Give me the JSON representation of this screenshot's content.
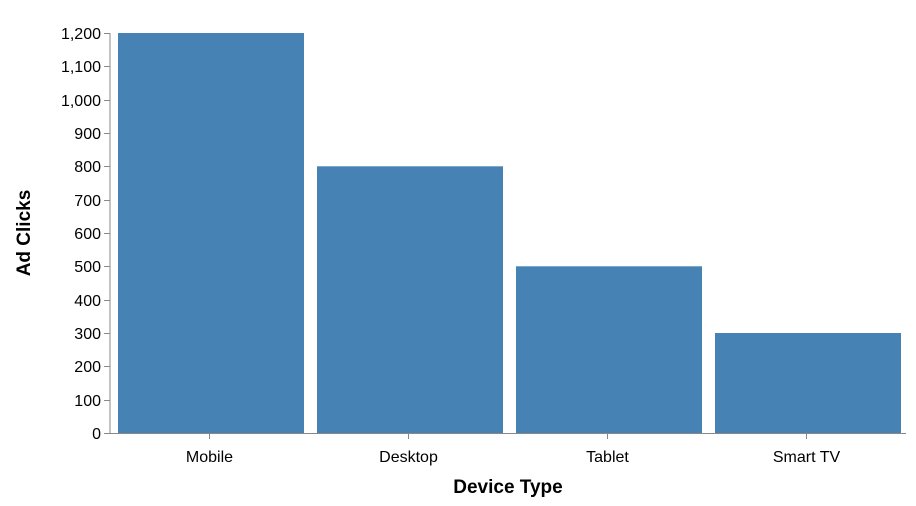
{
  "chart_data": {
    "type": "bar",
    "categories": [
      "Mobile",
      "Desktop",
      "Tablet",
      "Smart TV"
    ],
    "values": [
      1200,
      800,
      500,
      300
    ],
    "xlabel": "Device Type",
    "ylabel": "Ad Clicks",
    "ylim": [
      0,
      1200
    ],
    "yticks": [
      0,
      100,
      200,
      300,
      400,
      500,
      600,
      700,
      800,
      900,
      1000,
      1100,
      1200
    ],
    "ytick_labels": [
      "0",
      "100",
      "200",
      "300",
      "400",
      "500",
      "600",
      "700",
      "800",
      "900",
      "1,000",
      "1,100",
      "1,200"
    ],
    "grid": false,
    "bar_color": "#4682b4"
  }
}
